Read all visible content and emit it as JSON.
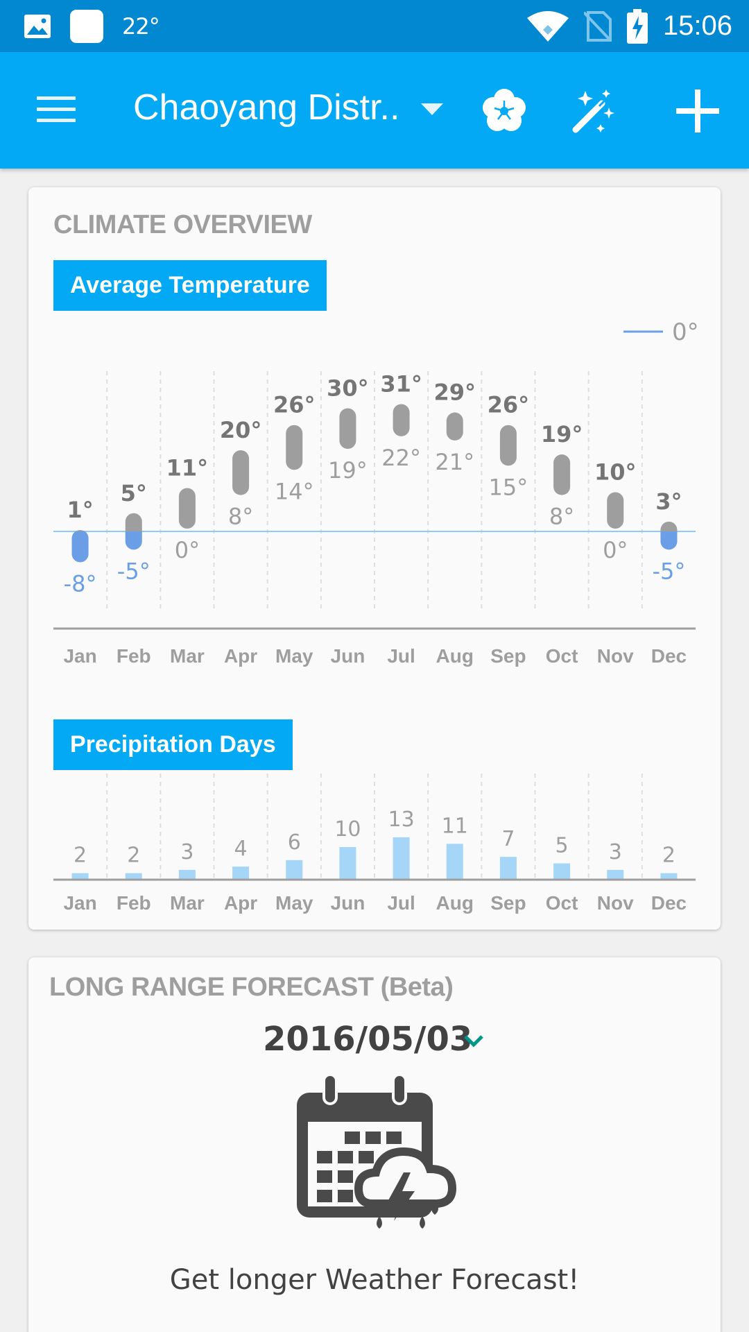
{
  "status_bar": {
    "temperature": "22°",
    "time": "15:06"
  },
  "app_bar": {
    "title": "Chaoyang Distr.."
  },
  "climate": {
    "title": "CLIMATE OVERVIEW",
    "temp_chip": "Average Temperature",
    "legend_label": "0°",
    "precip_chip": "Precipitation Days"
  },
  "chart_data": [
    {
      "type": "range-bar",
      "title": "Average Temperature",
      "categories": [
        "Jan",
        "Feb",
        "Mar",
        "Apr",
        "May",
        "Jun",
        "Jul",
        "Aug",
        "Sep",
        "Oct",
        "Nov",
        "Dec"
      ],
      "series": [
        {
          "name": "high",
          "values": [
            1,
            5,
            11,
            20,
            26,
            30,
            31,
            29,
            26,
            19,
            10,
            3
          ]
        },
        {
          "name": "low",
          "values": [
            -8,
            -5,
            0,
            8,
            14,
            19,
            22,
            21,
            15,
            8,
            0,
            -5
          ]
        }
      ],
      "baseline": 0,
      "colors": {
        "above": "#9e9e9e",
        "below": "#6a9fe8",
        "baseline": "#90caf9"
      }
    },
    {
      "type": "bar",
      "title": "Precipitation Days",
      "categories": [
        "Jan",
        "Feb",
        "Mar",
        "Apr",
        "May",
        "Jun",
        "Jul",
        "Aug",
        "Sep",
        "Oct",
        "Nov",
        "Dec"
      ],
      "values": [
        2,
        2,
        3,
        4,
        6,
        10,
        13,
        11,
        7,
        5,
        3,
        2
      ],
      "colors": {
        "bar": "#a5d6f7"
      }
    }
  ],
  "forecast": {
    "title": "LONG RANGE FORECAST (Beta)",
    "date": "2016/05/03",
    "cta": "Get longer Weather Forecast!",
    "icon": "calendar-storm-icon"
  }
}
